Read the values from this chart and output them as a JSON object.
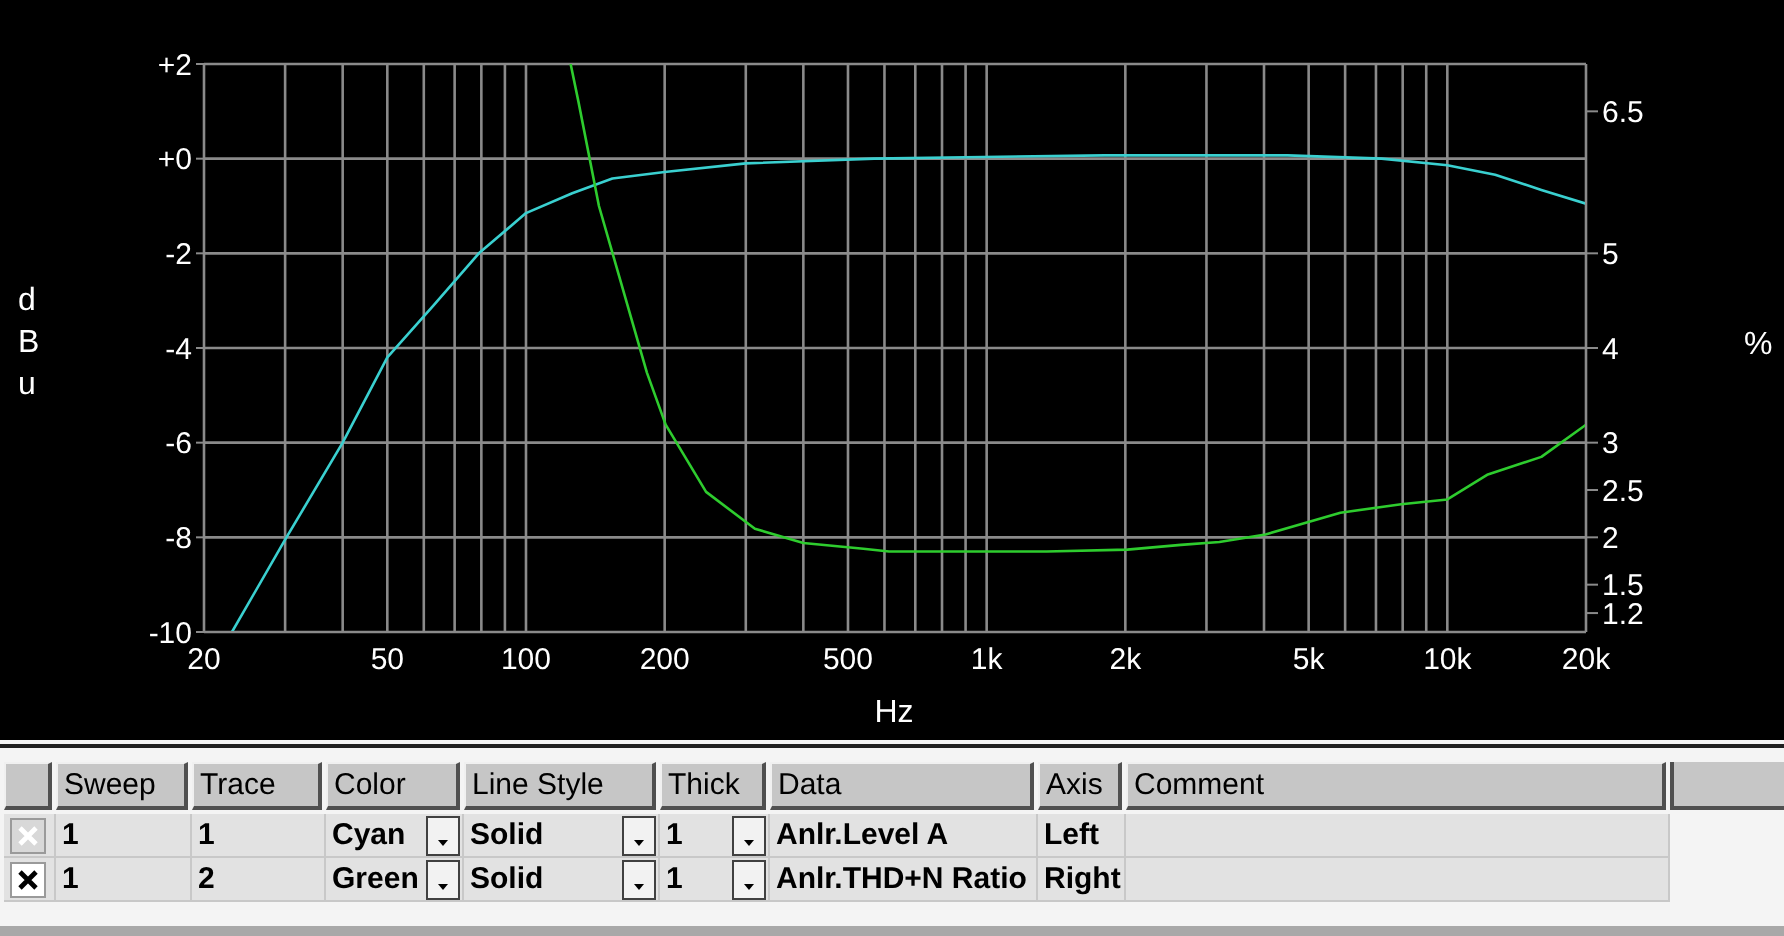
{
  "chart_data": {
    "type": "line",
    "xlabel": "Hz",
    "ylabel": "dBu",
    "y2label": "%",
    "xlim": [
      20,
      20000
    ],
    "xticks": [
      20,
      {
        "value": 30,
        "label": null
      },
      {
        "value": 40,
        "label": null
      },
      50,
      {
        "value": 60,
        "label": null
      },
      {
        "value": 70,
        "label": null
      },
      {
        "value": 80,
        "label": null
      },
      {
        "value": 90,
        "label": null
      },
      100,
      200,
      {
        "value": 300,
        "label": null
      },
      {
        "value": 400,
        "label": null
      },
      500,
      {
        "value": 600,
        "label": null
      },
      {
        "value": 700,
        "label": null
      },
      {
        "value": 800,
        "label": null
      },
      {
        "value": 900,
        "label": null
      },
      {
        "value": 1000,
        "label": "1k"
      },
      {
        "value": 2000,
        "label": "2k"
      },
      {
        "value": 3000,
        "label": null
      },
      {
        "value": 4000,
        "label": null
      },
      {
        "value": 5000,
        "label": "5k"
      },
      {
        "value": 6000,
        "label": null
      },
      {
        "value": 7000,
        "label": null
      },
      {
        "value": 8000,
        "label": null
      },
      {
        "value": 9000,
        "label": null
      },
      {
        "value": 10000,
        "label": "10k"
      },
      {
        "value": 20000,
        "label": "20k"
      }
    ],
    "ylim": [
      -10,
      2
    ],
    "yticks": [
      -10,
      -8,
      -6,
      -4,
      -2,
      {
        "value": 0,
        "label": "+0"
      },
      {
        "value": 2,
        "label": "+2"
      }
    ],
    "y2lim": [
      1,
      7
    ],
    "y2ticks": [
      1.2,
      1.5,
      2,
      2.5,
      3,
      4,
      5,
      6.5
    ],
    "log": "x",
    "grid": true,
    "marker": "none",
    "line_style": "solid",
    "series": [
      {
        "color": "#3ad0d0",
        "x": [
          23,
          30,
          40,
          50,
          63,
          79,
          100,
          126,
          154,
          200,
          300,
          570,
          900,
          1800,
          2600,
          4500,
          7200,
          10000,
          12700,
          16000,
          20000
        ],
        "values": [
          -10,
          -8.05,
          -6,
          -4.2,
          -3.1,
          -2,
          -1.15,
          -0.73,
          -0.42,
          -0.28,
          -0.1,
          0,
          0.03,
          0.07,
          0.07,
          0.07,
          0,
          -0.14,
          -0.34,
          -0.66,
          -0.95
        ]
      },
      {
        "color": "#2ecc2e",
        "axis": "y2",
        "x": [
          125,
          130,
          144,
          183,
          201,
          246,
          314,
          400,
          540,
          614,
          1350,
          2020,
          2640,
          3200,
          4030,
          5860,
          7940,
          10000,
          12200,
          16000,
          20000
        ],
        "values": [
          7,
          6.6,
          5.5,
          3.74,
          3.19,
          2.48,
          2.09,
          1.94,
          1.88,
          1.85,
          1.85,
          1.87,
          1.92,
          1.95,
          2.03,
          2.26,
          2.35,
          2.4,
          2.66,
          2.85,
          3.19
        ]
      }
    ],
    "annotations": [
      "Sweep",
      "Trace",
      "Color",
      "Line Style",
      "Thick",
      "Data",
      "Axis",
      "Comment",
      "1",
      "1",
      "Cyan",
      "Solid",
      "1",
      "Anlr.Level A",
      "Left",
      "1",
      "2",
      "Green",
      "Solid",
      "1",
      "Anlr.THD+N Ratio",
      "Right"
    ]
  }
}
